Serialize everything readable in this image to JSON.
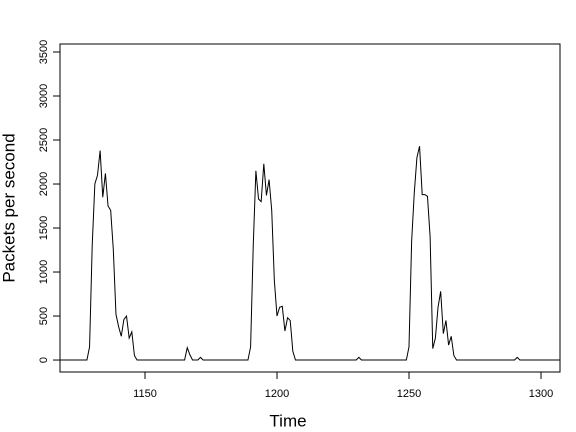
{
  "chart_data": {
    "type": "line",
    "x_label": "Time",
    "y_label": "Packets per second",
    "x": [
      1118,
      1128,
      1129,
      1130,
      1131,
      1132,
      1133,
      1134,
      1135,
      1136,
      1137,
      1138,
      1139,
      1140,
      1141,
      1142,
      1143,
      1144,
      1145,
      1146,
      1147,
      1165,
      1166,
      1167,
      1168,
      1170,
      1171,
      1172,
      1189,
      1190,
      1191,
      1192,
      1193,
      1194,
      1195,
      1196,
      1197,
      1198,
      1199,
      1200,
      1201,
      1202,
      1203,
      1204,
      1205,
      1206,
      1207,
      1230,
      1231,
      1232,
      1249,
      1250,
      1251,
      1252,
      1253,
      1254,
      1255,
      1256,
      1257,
      1258,
      1259,
      1260,
      1261,
      1262,
      1263,
      1264,
      1265,
      1266,
      1267,
      1268,
      1290,
      1291,
      1292,
      1307
    ],
    "series": [
      {
        "color": "#000000",
        "values": [
          0,
          0,
          150,
          1300,
          2000,
          2100,
          2380,
          1850,
          2120,
          1750,
          1700,
          1250,
          520,
          380,
          270,
          460,
          500,
          250,
          320,
          50,
          0,
          0,
          140,
          60,
          0,
          0,
          30,
          0,
          0,
          150,
          1300,
          2150,
          1830,
          1800,
          2230,
          1870,
          2050,
          1700,
          900,
          500,
          600,
          610,
          330,
          480,
          450,
          100,
          0,
          0,
          30,
          0,
          0,
          150,
          1350,
          1900,
          2300,
          2430,
          1880,
          1880,
          1860,
          1400,
          130,
          250,
          600,
          780,
          300,
          450,
          170,
          270,
          50,
          0,
          0,
          30,
          0,
          0
        ]
      }
    ],
    "xlim": [
      1117.8,
      1307.2
    ],
    "ylim": [
      -136,
      3591
    ],
    "xticks": [
      1150,
      1200,
      1250,
      1300
    ],
    "yticks": [
      0,
      500,
      1000,
      1500,
      2000,
      2500,
      3000,
      3500
    ]
  }
}
